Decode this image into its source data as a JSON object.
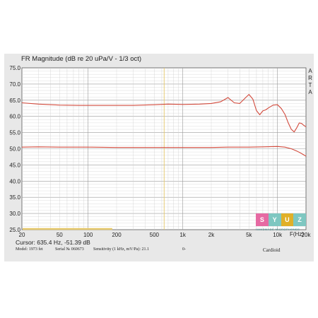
{
  "chart_data": {
    "type": "line",
    "title": "FR Magnitude (dB re 20 uPa/V - 1/3 oct)",
    "side_label": [
      "A",
      "R",
      "T",
      "A"
    ],
    "xlabel": "F(Hz)",
    "xscale": "log",
    "xlim": [
      20,
      20000
    ],
    "ylim": [
      25,
      75
    ],
    "y_ticks": [
      "25.0",
      "30.0",
      "35.0",
      "40.0",
      "45.0",
      "50.0",
      "55.0",
      "60.0",
      "65.0",
      "70.0",
      "75.0"
    ],
    "x_ticks": [
      {
        "value": 20,
        "label": "20"
      },
      {
        "value": 50,
        "label": "50"
      },
      {
        "value": 100,
        "label": "100"
      },
      {
        "value": 200,
        "label": "200"
      },
      {
        "value": 500,
        "label": "500"
      },
      {
        "value": 1000,
        "label": "1k"
      },
      {
        "value": 2000,
        "label": "2k"
      },
      {
        "value": 5000,
        "label": "5k"
      },
      {
        "value": 10000,
        "label": "10k"
      },
      {
        "value": 20000,
        "label": "20k"
      }
    ],
    "grid": true,
    "cursor_x": 635.4,
    "series": [
      {
        "color": "#d24a3c",
        "x": [
          20,
          30,
          50,
          80,
          100,
          150,
          200,
          300,
          500,
          700,
          1000,
          1500,
          2000,
          2500,
          3000,
          3500,
          4000,
          4500,
          5000,
          5500,
          6000,
          6500,
          7000,
          7500,
          8000,
          9000,
          10000,
          11000,
          12000,
          13000,
          14000,
          15000,
          16000,
          17000,
          18000,
          19000,
          20000
        ],
        "y": [
          64.2,
          63.8,
          63.5,
          63.4,
          63.4,
          63.4,
          63.4,
          63.4,
          63.6,
          63.8,
          63.7,
          63.8,
          64.0,
          64.5,
          65.8,
          64.2,
          64.0,
          65.5,
          66.8,
          65.3,
          61.8,
          60.5,
          61.7,
          62.0,
          62.6,
          63.5,
          63.6,
          62.4,
          60.6,
          58.0,
          56.0,
          55.2,
          56.5,
          58.0,
          57.8,
          57.2,
          56.8
        ]
      },
      {
        "color": "#d24a3c",
        "x": [
          20,
          30,
          50,
          100,
          200,
          300,
          500,
          1000,
          2000,
          3000,
          5000,
          7000,
          10000,
          12000,
          14000,
          16000,
          18000,
          20000
        ],
        "y": [
          50.5,
          50.6,
          50.5,
          50.5,
          50.4,
          50.4,
          50.4,
          50.4,
          50.4,
          50.5,
          50.5,
          50.6,
          50.7,
          50.5,
          50.0,
          49.3,
          48.5,
          47.7
        ]
      }
    ]
  },
  "cursor_text": "Cursor: 635.4 Hz, -51.39 dB",
  "footer": {
    "model": "Model: 1973 fet",
    "serial": "Serial № 060673",
    "sensitivity": "Sensitivity (1 kHz, mV/Pa): 21.1",
    "extra": "0-",
    "pattern": "Cardioid"
  },
  "logo": {
    "letters": [
      "S",
      "Y",
      "U",
      "Z"
    ],
    "colors": [
      "#e66aa3",
      "#7ec7c1",
      "#e0b028",
      "#7ec7c1"
    ],
    "tagline": "HANDMADE MICROPHONES"
  }
}
